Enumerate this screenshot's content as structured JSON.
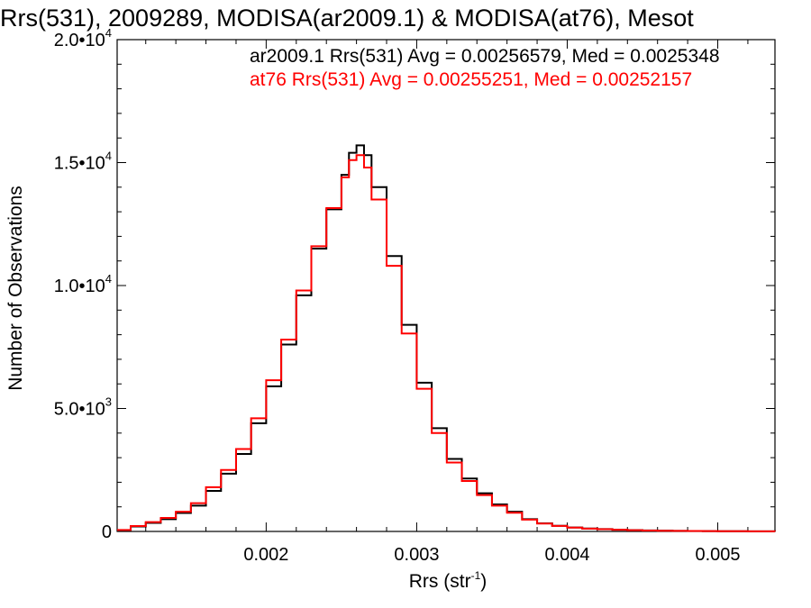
{
  "chart_data": {
    "type": "line",
    "title": "Rrs(531), 2009289, MODISA(ar2009.1) & MODISA(at76), Mesot",
    "xlabel": "Rrs (str",
    "xlabel_sup": "-1",
    "xlabel_close": ")",
    "ylabel": "Number of Observations",
    "xlim": [
      0.00101,
      0.00538
    ],
    "ylim": [
      0,
      20000
    ],
    "x_ticks": [
      {
        "value": 0.002,
        "label": "0.002"
      },
      {
        "value": 0.003,
        "label": "0.003"
      },
      {
        "value": 0.004,
        "label": "0.004"
      },
      {
        "value": 0.005,
        "label": "0.005"
      }
    ],
    "y_ticks": [
      {
        "value": 0,
        "base": "0",
        "exp": ""
      },
      {
        "value": 5000,
        "base": "5.0•10",
        "exp": "3"
      },
      {
        "value": 10000,
        "base": "1.0•10",
        "exp": "4"
      },
      {
        "value": 15000,
        "base": "1.5•10",
        "exp": "4"
      },
      {
        "value": 20000,
        "base": "2.0•10",
        "exp": "4"
      }
    ],
    "legend_placement": "top-right",
    "grid": false,
    "series": [
      {
        "name": "ar2009.1",
        "legend_text": "ar2009.1 Rrs(531) Avg = 0.00256579, Med = 0.0025348",
        "color": "#000000",
        "step": true,
        "x": [
          0.00101,
          0.0011,
          0.0012,
          0.0013,
          0.0014,
          0.0015,
          0.0016,
          0.0017,
          0.0018,
          0.0019,
          0.002,
          0.0021,
          0.0022,
          0.0023,
          0.0024,
          0.0025,
          0.00255,
          0.0026,
          0.00265,
          0.0027,
          0.0028,
          0.0029,
          0.003,
          0.0031,
          0.0032,
          0.0033,
          0.0034,
          0.0035,
          0.0036,
          0.0037,
          0.0038,
          0.0039,
          0.004,
          0.0041,
          0.0042,
          0.0043,
          0.0044,
          0.0045,
          0.0046,
          0.0047,
          0.0048,
          0.0049,
          0.005,
          0.0051,
          0.0052,
          0.0053,
          0.00538
        ],
        "y": [
          50,
          200,
          350,
          500,
          750,
          1050,
          1650,
          2350,
          3150,
          4400,
          5900,
          7600,
          9600,
          11500,
          13100,
          14500,
          15400,
          15700,
          15300,
          14000,
          11200,
          8400,
          6050,
          4200,
          2950,
          2150,
          1550,
          1100,
          800,
          500,
          330,
          230,
          160,
          120,
          95,
          70,
          55,
          40,
          30,
          22,
          18,
          14,
          10,
          8,
          6,
          4,
          3
        ]
      },
      {
        "name": "at76",
        "legend_text": "at76 Rrs(531) Avg = 0.00255251, Med = 0.00252157",
        "color": "#ff0000",
        "step": true,
        "x": [
          0.00101,
          0.0011,
          0.0012,
          0.0013,
          0.0014,
          0.0015,
          0.0016,
          0.0017,
          0.0018,
          0.0019,
          0.002,
          0.0021,
          0.0022,
          0.0023,
          0.0024,
          0.0025,
          0.00255,
          0.0026,
          0.00265,
          0.0027,
          0.0028,
          0.0029,
          0.003,
          0.0031,
          0.0032,
          0.0033,
          0.0034,
          0.0035,
          0.0036,
          0.0037,
          0.0038,
          0.0039,
          0.004,
          0.0041,
          0.0042,
          0.0043,
          0.0044,
          0.0045,
          0.0046,
          0.0047,
          0.0048,
          0.0049,
          0.005,
          0.0051,
          0.0052,
          0.0053,
          0.00538
        ],
        "y": [
          60,
          220,
          380,
          550,
          800,
          1150,
          1800,
          2500,
          3350,
          4600,
          6150,
          7800,
          9800,
          11600,
          13150,
          14400,
          15100,
          15300,
          14800,
          13500,
          10800,
          8050,
          5800,
          4000,
          2800,
          2050,
          1480,
          1050,
          760,
          480,
          320,
          225,
          155,
          115,
          90,
          68,
          52,
          38,
          28,
          21,
          17,
          13,
          9,
          7,
          5,
          4,
          3
        ]
      }
    ]
  }
}
